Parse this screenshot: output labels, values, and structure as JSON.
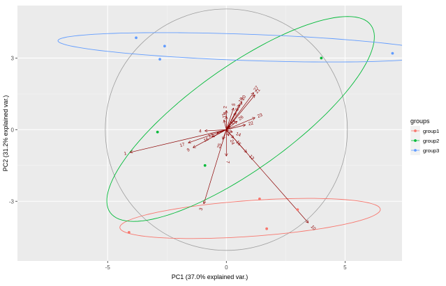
{
  "chart_data": {
    "type": "scatter",
    "subtype": "pca-biplot",
    "title": "",
    "xlabel": "PC1 (37.0% explained var.)",
    "ylabel": "PC2 (31.2% explained var.)",
    "xlim": [
      -8.8,
      7.4
    ],
    "ylim": [
      -5.5,
      5.2
    ],
    "xticks": [
      -5,
      0,
      5
    ],
    "xtick_labels": [
      "-5",
      "0",
      "5"
    ],
    "yticks": [
      -3,
      0,
      3
    ],
    "ytick_labels": [
      "-3",
      "0",
      "3"
    ],
    "grid": true,
    "legend": {
      "title": "groups",
      "position": "right",
      "entries": [
        "group1",
        "group2",
        "group3"
      ]
    },
    "colors": {
      "group1": "#f8766d",
      "group2": "#00ba38",
      "group3": "#619cff",
      "arrows": "#8b0000",
      "panel": "#ebebeb",
      "circle": "#9e9e9e"
    },
    "series": [
      {
        "name": "group1",
        "points": [
          [
            -4.1,
            -4.3
          ],
          [
            1.4,
            -2.9
          ],
          [
            1.7,
            -4.15
          ],
          [
            3.0,
            -3.35
          ]
        ],
        "ellipse": {
          "cx": 1.0,
          "cy": -3.72,
          "rx": 5.5,
          "ry": 0.75,
          "angle_deg": 4
        }
      },
      {
        "name": "group2",
        "points": [
          [
            -2.9,
            -0.1
          ],
          [
            -0.9,
            -1.5
          ],
          [
            4.0,
            3.0
          ]
        ],
        "ellipse": {
          "cx": 0.6,
          "cy": 0.45,
          "rx": 6.75,
          "ry": 2.15,
          "angle_deg": 35.5
        }
      },
      {
        "name": "group3",
        "points": [
          [
            -3.8,
            3.85
          ],
          [
            -2.6,
            3.5
          ],
          [
            -2.8,
            2.95
          ],
          [
            7.0,
            3.2
          ]
        ],
        "ellipse": {
          "cx": 0.85,
          "cy": 3.45,
          "rx": 7.95,
          "ry": 0.55,
          "angle_deg": -2
        }
      }
    ],
    "correlation_circle_radius": 5.1,
    "loadings": [
      {
        "label": "1",
        "x": -4.05,
        "y": -0.95
      },
      {
        "label": "3",
        "x": -0.95,
        "y": -3.1
      },
      {
        "label": "10",
        "x": 3.45,
        "y": -3.9
      },
      {
        "label": "17",
        "x": -1.6,
        "y": -0.55
      },
      {
        "label": "9",
        "x": -1.4,
        "y": -0.75
      },
      {
        "label": "7",
        "x": 0.0,
        "y": -1.1
      },
      {
        "label": "12",
        "x": 0.85,
        "y": -0.95
      },
      {
        "label": "16",
        "x": -0.6,
        "y": -0.3
      },
      {
        "label": "13",
        "x": -0.4,
        "y": -0.15
      },
      {
        "label": "4",
        "x": -0.9,
        "y": -0.05
      },
      {
        "label": "21",
        "x": 1.2,
        "y": 1.45
      },
      {
        "label": "27",
        "x": 1.15,
        "y": 1.55
      },
      {
        "label": "23",
        "x": 1.2,
        "y": 0.5
      },
      {
        "label": "20",
        "x": 0.65,
        "y": 1.15
      },
      {
        "label": "18",
        "x": 0.55,
        "y": 1.05
      },
      {
        "label": "5",
        "x": 0.3,
        "y": 0.9
      },
      {
        "label": "6",
        "x": 0.4,
        "y": 0.7
      },
      {
        "label": "8",
        "x": 0.0,
        "y": 0.55
      },
      {
        "label": "2",
        "x": 0.0,
        "y": 0.8
      },
      {
        "label": "11",
        "x": -0.1,
        "y": 0.4
      },
      {
        "label": "14",
        "x": 0.25,
        "y": -0.1
      },
      {
        "label": "15",
        "x": 0.3,
        "y": -0.35
      },
      {
        "label": "19",
        "x": 0.15,
        "y": 0.15
      },
      {
        "label": "22",
        "x": 0.8,
        "y": 0.2
      },
      {
        "label": "24",
        "x": 0.1,
        "y": -0.25
      },
      {
        "label": "25",
        "x": -0.15,
        "y": -0.4
      },
      {
        "label": "26",
        "x": 0.45,
        "y": 0.35
      }
    ]
  }
}
